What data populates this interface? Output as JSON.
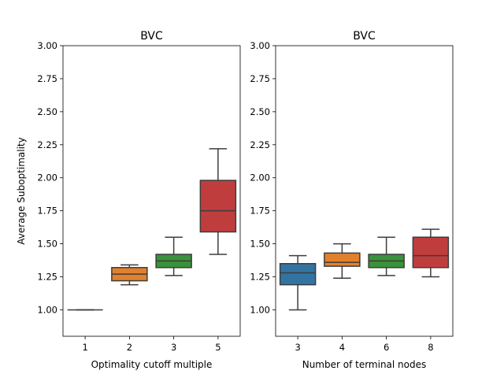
{
  "chart_data": [
    {
      "type": "box",
      "title": "BVC",
      "xlabel": "Optimality cutoff multiple",
      "ylabel": "Average Suboptimality",
      "ylim": [
        0.8,
        3.0
      ],
      "yticks": [
        "1.00",
        "1.25",
        "1.50",
        "1.75",
        "2.00",
        "2.25",
        "2.50",
        "2.75",
        "3.00"
      ],
      "categories": [
        "1",
        "2",
        "3",
        "5"
      ],
      "boxes": [
        {
          "category": "1",
          "whisker_low": 1.0,
          "q1": 1.0,
          "median": 1.0,
          "q3": 1.0,
          "whisker_high": 1.0,
          "color": "#3274a1"
        },
        {
          "category": "2",
          "whisker_low": 1.19,
          "q1": 1.22,
          "median": 1.27,
          "q3": 1.32,
          "whisker_high": 1.34,
          "color": "#e1812c"
        },
        {
          "category": "3",
          "whisker_low": 1.26,
          "q1": 1.32,
          "median": 1.37,
          "q3": 1.42,
          "whisker_high": 1.55,
          "color": "#3a923a"
        },
        {
          "category": "5",
          "whisker_low": 1.42,
          "q1": 1.59,
          "median": 1.75,
          "q3": 1.98,
          "whisker_high": 2.22,
          "color": "#c03d3e"
        }
      ]
    },
    {
      "type": "box",
      "title": "BVC",
      "xlabel": "Number of terminal nodes",
      "ylabel": "",
      "ylim": [
        0.8,
        3.0
      ],
      "yticks": [
        "1.00",
        "1.25",
        "1.50",
        "1.75",
        "2.00",
        "2.25",
        "2.50",
        "2.75",
        "3.00"
      ],
      "categories": [
        "3",
        "4",
        "6",
        "8"
      ],
      "boxes": [
        {
          "category": "3",
          "whisker_low": 1.0,
          "q1": 1.19,
          "median": 1.28,
          "q3": 1.35,
          "whisker_high": 1.41,
          "color": "#3274a1"
        },
        {
          "category": "4",
          "whisker_low": 1.24,
          "q1": 1.33,
          "median": 1.36,
          "q3": 1.43,
          "whisker_high": 1.5,
          "color": "#e1812c"
        },
        {
          "category": "6",
          "whisker_low": 1.26,
          "q1": 1.32,
          "median": 1.37,
          "q3": 1.42,
          "whisker_high": 1.55,
          "color": "#3a923a"
        },
        {
          "category": "8",
          "whisker_low": 1.25,
          "q1": 1.32,
          "median": 1.41,
          "q3": 1.55,
          "whisker_high": 1.61,
          "color": "#c03d3e"
        }
      ]
    }
  ]
}
